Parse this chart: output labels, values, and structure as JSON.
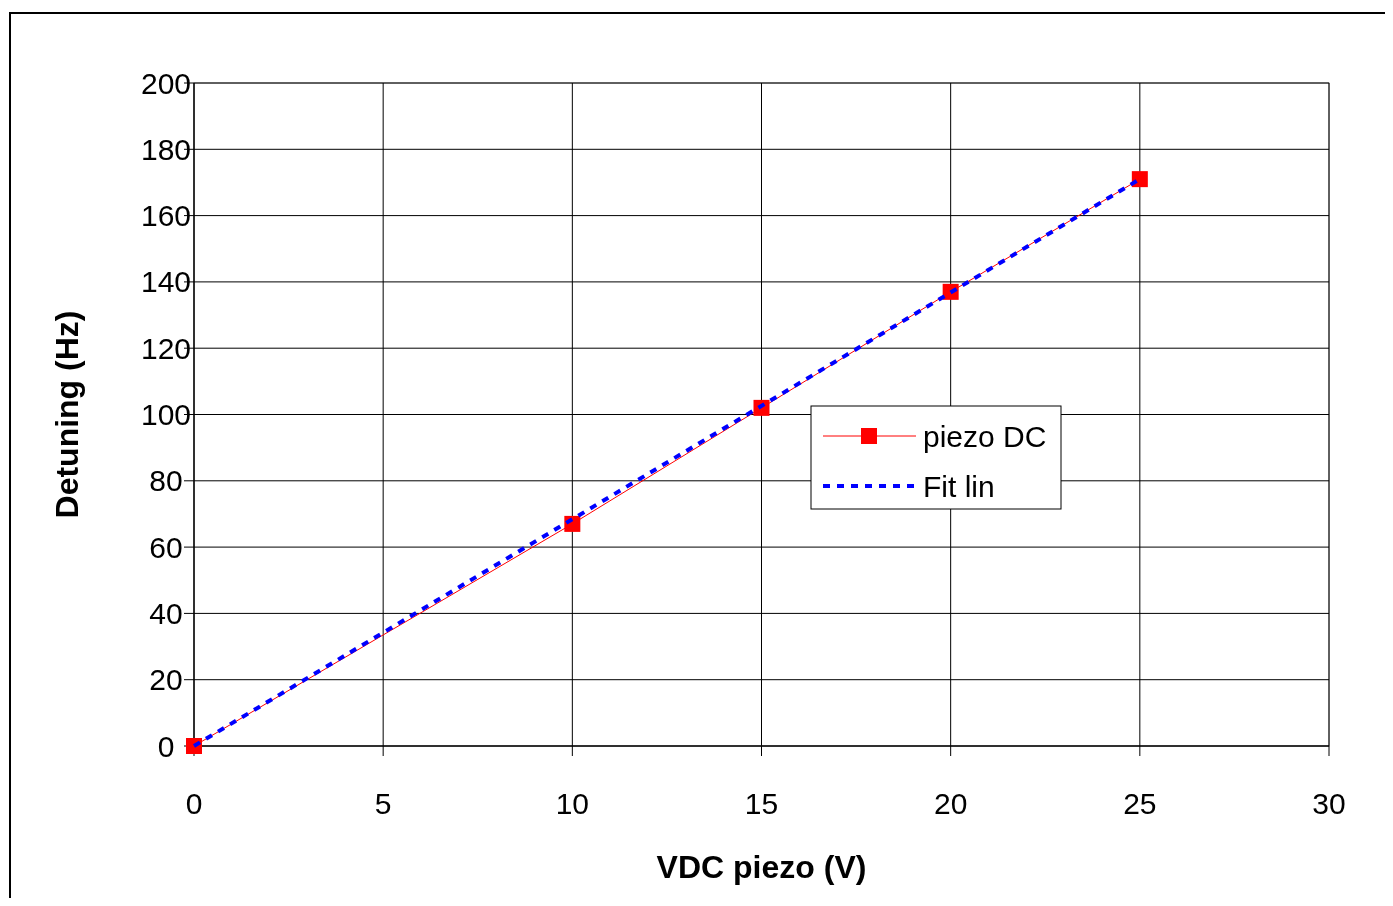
{
  "chart_data": {
    "type": "line",
    "xlabel": "VDC piezo (V)",
    "ylabel": "Detuning (Hz)",
    "xlim": [
      0,
      30
    ],
    "xticks": [
      0,
      5,
      10,
      15,
      20,
      25,
      30
    ],
    "ylim": [
      0,
      200
    ],
    "yticks": [
      0,
      20,
      40,
      60,
      80,
      100,
      120,
      140,
      160,
      180,
      200
    ],
    "grid": true,
    "legend": "right",
    "series": [
      {
        "name": "piezo DC",
        "color": "#ff0000",
        "marker": "square",
        "line_style": "solid",
        "x": [
          0,
          10,
          15,
          20,
          25
        ],
        "values": [
          0,
          67,
          102,
          137,
          171
        ]
      },
      {
        "name": "Fit lin",
        "color": "#0000ff",
        "marker": "none",
        "line_style": "dotted",
        "x": [
          0,
          25
        ],
        "values": [
          0,
          171
        ]
      }
    ]
  }
}
